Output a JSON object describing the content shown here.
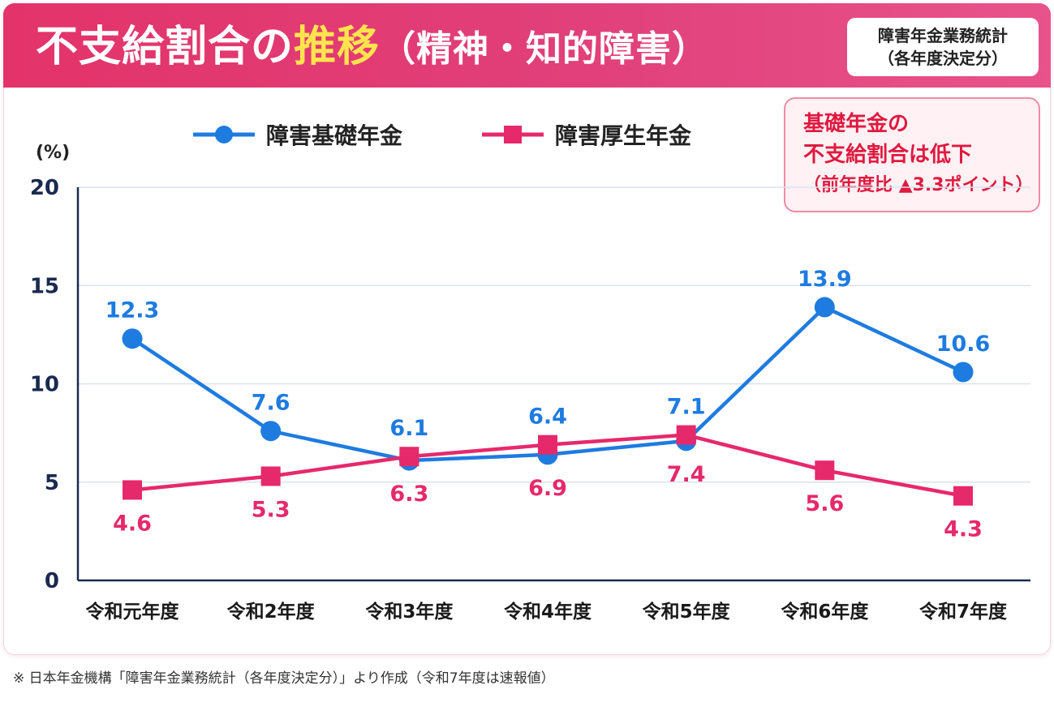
{
  "header": {
    "title_main": "不支給割合の",
    "title_highlight": "推移",
    "title_sub": "（精神・知的障害）",
    "source_line1": "障害年金業務統計",
    "source_line2": "（各年度決定分）"
  },
  "callout": {
    "line1": "基礎年金の",
    "line2": "不支給割合は低下",
    "line3": "（前年度比 ▲3.3ポイント）"
  },
  "unit_label": "(%)",
  "footnote": "※ 日本年金機構「障害年金業務統計（各年度決定分）」より作成（令和7年度は速報値）",
  "colors": {
    "blue": "#1e7be0",
    "pink": "#e6296b",
    "grid": "#d9e2ee",
    "axis": "#1a2a4f"
  },
  "chart_data": {
    "type": "line",
    "title": "不支給割合の推移（精神・知的障害）",
    "ylabel": "(%)",
    "xlabel": "",
    "ylim": [
      0,
      20
    ],
    "yticks": [
      0,
      5,
      10,
      15,
      20
    ],
    "grid": true,
    "legend_position": "top",
    "categories": [
      "令和元年度",
      "令和2年度",
      "令和3年度",
      "令和4年度",
      "令和5年度",
      "令和6年度",
      "令和7年度"
    ],
    "series": [
      {
        "name": "障害基礎年金",
        "color": "#1e7be0",
        "marker": "circle",
        "values": [
          12.3,
          7.6,
          6.1,
          6.4,
          7.1,
          13.9,
          10.6
        ]
      },
      {
        "name": "障害厚生年金",
        "color": "#e6296b",
        "marker": "square",
        "values": [
          4.6,
          5.3,
          6.3,
          6.9,
          7.4,
          5.6,
          4.3
        ]
      }
    ]
  }
}
